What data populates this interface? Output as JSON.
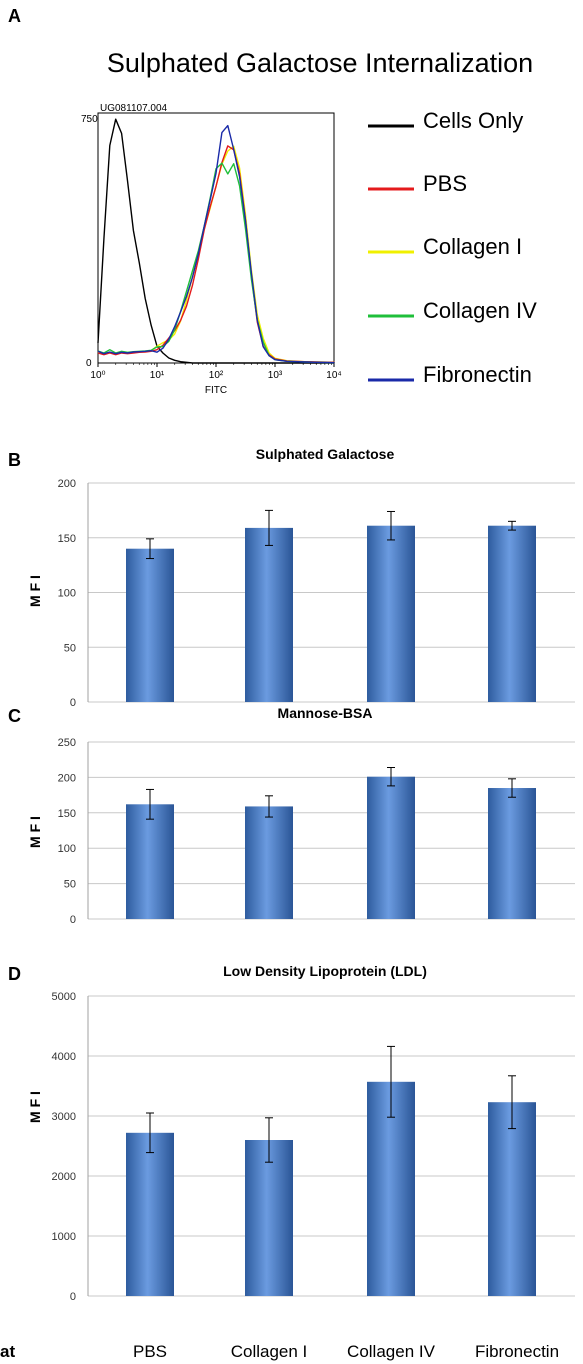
{
  "panel_a": {
    "letter": "A",
    "title": "Sulphated Galactose Internalization",
    "sample_id": "UG081107.004",
    "x_axis_label": "FITC",
    "y_max_label": "750",
    "y_zero_label": "0",
    "legend": [
      {
        "label": "Cells Only",
        "color": "#000000"
      },
      {
        "label": "PBS",
        "color": "#e41a1c"
      },
      {
        "label": "Collagen I",
        "color": "#f0f000"
      },
      {
        "label": "Collagen IV",
        "color": "#1fbf3a"
      },
      {
        "label": "Fibronectin",
        "color": "#1a2aa8"
      }
    ]
  },
  "bottom": {
    "cut_label": "at",
    "categories": [
      "PBS",
      "Collagen I",
      "Collagen IV",
      "Fibronectin"
    ]
  },
  "chart_data": [
    {
      "type": "histogram",
      "panel": "A",
      "title": "Sulphated Galactose Internalization",
      "xlabel": "FITC",
      "x_scale": "log",
      "xlim": [
        1,
        10000
      ],
      "x_tick_labels": [
        "10⁰",
        "10¹",
        "10²",
        "10³",
        "10⁴"
      ],
      "ylim": [
        0,
        750
      ],
      "y_tick_labels": [
        "0",
        "750"
      ],
      "log10_x": [
        0,
        0.1,
        0.2,
        0.3,
        0.4,
        0.5,
        0.6,
        0.7,
        0.8,
        0.9,
        1.0,
        1.1,
        1.2,
        1.3,
        1.4,
        1.5,
        1.6,
        1.7,
        1.8,
        1.9,
        2.0,
        2.1,
        2.2,
        2.3,
        2.4,
        2.5,
        2.6,
        2.7,
        2.8,
        2.9,
        3.0,
        3.2,
        3.5,
        4.0
      ],
      "series": [
        {
          "name": "Cells Only",
          "color": "#000000",
          "values": [
            60,
            360,
            640,
            730,
            700,
            560,
            400,
            290,
            180,
            110,
            60,
            30,
            15,
            8,
            4,
            2,
            0,
            0,
            0,
            0,
            0,
            0,
            0,
            0,
            0,
            0,
            0,
            0,
            0,
            0,
            0,
            0,
            0,
            0
          ]
        },
        {
          "name": "PBS",
          "color": "#e41a1c",
          "values": [
            30,
            25,
            30,
            25,
            30,
            28,
            30,
            32,
            33,
            35,
            40,
            50,
            65,
            90,
            130,
            180,
            240,
            310,
            390,
            460,
            530,
            610,
            660,
            640,
            560,
            420,
            260,
            130,
            60,
            25,
            12,
            6,
            4,
            2
          ]
        },
        {
          "name": "Collagen I",
          "color": "#f0f000",
          "values": [
            32,
            27,
            32,
            27,
            32,
            30,
            32,
            34,
            35,
            37,
            42,
            52,
            68,
            95,
            135,
            190,
            250,
            320,
            400,
            470,
            540,
            600,
            630,
            640,
            580,
            450,
            290,
            150,
            70,
            30,
            14,
            7,
            4,
            2
          ]
        },
        {
          "name": "Collagen IV",
          "color": "#1fbf3a",
          "values": [
            45,
            30,
            40,
            30,
            35,
            32,
            34,
            35,
            36,
            38,
            44,
            55,
            75,
            105,
            150,
            205,
            270,
            340,
            420,
            500,
            580,
            590,
            560,
            600,
            540,
            410,
            250,
            120,
            55,
            22,
            10,
            5,
            3,
            1
          ]
        },
        {
          "name": "Fibronectin",
          "color": "#1a2aa8",
          "values": [
            35,
            28,
            33,
            28,
            32,
            30,
            33,
            34,
            35,
            37,
            42,
            52,
            70,
            100,
            145,
            200,
            265,
            335,
            410,
            480,
            560,
            690,
            720,
            650,
            560,
            420,
            260,
            125,
            55,
            22,
            10,
            5,
            3,
            1
          ]
        }
      ]
    },
    {
      "type": "bar",
      "panel": "B",
      "letter": "B",
      "title": "Sulphated Galactose",
      "ylabel": "M F I",
      "categories": [
        "PBS",
        "Collagen I",
        "Collagen IV",
        "Fibronectin"
      ],
      "values": [
        140,
        159,
        161,
        161
      ],
      "errors": [
        9,
        16,
        13,
        4
      ],
      "ylim": [
        0,
        200
      ],
      "yticks": [
        0,
        50,
        100,
        150,
        200
      ],
      "grid": true
    },
    {
      "type": "bar",
      "panel": "C",
      "letter": "C",
      "title": "Mannose-BSA",
      "ylabel": "M F I",
      "categories": [
        "PBS",
        "Collagen I",
        "Collagen IV",
        "Fibronectin"
      ],
      "values": [
        162,
        159,
        201,
        185
      ],
      "errors": [
        21,
        15,
        13,
        13
      ],
      "ylim": [
        0,
        250
      ],
      "yticks": [
        0,
        50,
        100,
        150,
        200,
        250
      ],
      "grid": true
    },
    {
      "type": "bar",
      "panel": "D",
      "letter": "D",
      "title": "Low Density Lipoprotein (LDL)",
      "ylabel": "M F I",
      "categories": [
        "PBS",
        "Collagen I",
        "Collagen IV",
        "Fibronectin"
      ],
      "values": [
        2720,
        2600,
        3570,
        3230
      ],
      "errors": [
        330,
        370,
        590,
        440
      ],
      "ylim": [
        0,
        5000
      ],
      "yticks": [
        0,
        1000,
        2000,
        3000,
        4000,
        5000
      ],
      "grid": true
    }
  ]
}
